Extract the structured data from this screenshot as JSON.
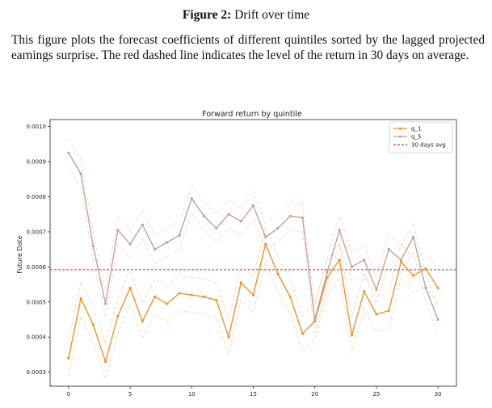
{
  "figure": {
    "label": "Figure 2:",
    "title": "Drift over time",
    "caption": "This figure plots the forecast coefficients of different quintiles sorted by the lagged projected earnings surprise. The red dashed line indicates the level of the return in 30 days on average."
  },
  "chart_data": {
    "type": "line",
    "title": "Forward return by quintile",
    "xlabel": "",
    "ylabel": "Future Date",
    "xlim": [
      -1.5,
      31.5
    ],
    "ylim": [
      0.00026,
      0.00102
    ],
    "x_ticks": [
      0,
      5,
      10,
      15,
      20,
      25,
      30
    ],
    "y_ticks": [
      0.0003,
      0.0004,
      0.0005,
      0.0006,
      0.0007,
      0.0008,
      0.0009,
      0.001
    ],
    "y_tick_labels": [
      "0.0003",
      "0.0004",
      "0.0005",
      "0.0006",
      "0.0007",
      "0.0008",
      "0.0009",
      "0.0010"
    ],
    "grid": false,
    "legend_position": "top-right",
    "x": [
      0,
      1,
      2,
      3,
      4,
      5,
      6,
      7,
      8,
      9,
      10,
      11,
      12,
      13,
      14,
      15,
      16,
      17,
      18,
      19,
      20,
      21,
      22,
      23,
      24,
      25,
      26,
      27,
      28,
      29,
      30
    ],
    "series": [
      {
        "name": "q_1",
        "color": "#f0922d",
        "band_offset": 5e-05,
        "values": [
          0.00034,
          0.00051,
          0.000435,
          0.00033,
          0.00046,
          0.00054,
          0.000445,
          0.000515,
          0.000495,
          0.000525,
          0.00052,
          0.000515,
          0.000505,
          0.0004,
          0.000555,
          0.00052,
          0.000665,
          0.00058,
          0.000515,
          0.00041,
          0.000445,
          0.00057,
          0.00062,
          0.000405,
          0.00053,
          0.000465,
          0.000475,
          0.000615,
          0.000575,
          0.000595,
          0.00054
        ]
      },
      {
        "name": "q_5",
        "color": "#c4a09a",
        "band_offset": 4e-05,
        "values": [
          0.000925,
          0.000865,
          0.00066,
          0.000495,
          0.000705,
          0.000665,
          0.00072,
          0.00065,
          0.00067,
          0.00069,
          0.000795,
          0.000745,
          0.00071,
          0.00075,
          0.00073,
          0.000775,
          0.000685,
          0.00071,
          0.000745,
          0.00074,
          0.00045,
          0.000585,
          0.000705,
          0.0006,
          0.00062,
          0.000535,
          0.00065,
          0.00062,
          0.000685,
          0.00054,
          0.00045
        ]
      }
    ],
    "reference_line": {
      "name": "30 days avg",
      "value": 0.000592,
      "color": "#e8302a"
    }
  }
}
